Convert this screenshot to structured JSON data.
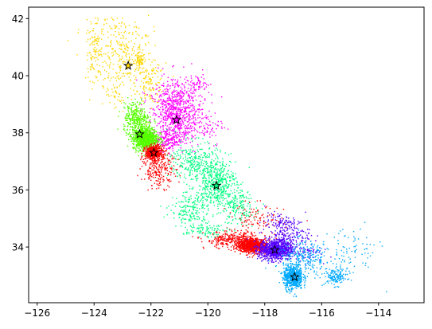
{
  "chart_data": {
    "type": "scatter",
    "title": "",
    "xlabel": "",
    "ylabel": "",
    "xlim": [
      -126.3,
      -112.4
    ],
    "ylim": [
      32.05,
      42.4
    ],
    "x_ticks": [
      -126,
      -124,
      -122,
      -120,
      -118,
      -116,
      -114
    ],
    "y_ticks": [
      34,
      36,
      38,
      40,
      42
    ],
    "x_tick_labels": [
      "−126",
      "−124",
      "−122",
      "−120",
      "−118",
      "−116",
      "−114"
    ],
    "y_tick_labels": [
      "34",
      "36",
      "38",
      "40",
      "42"
    ],
    "grid": false,
    "legend": "none",
    "clusters": [
      {
        "color": "#ffd700",
        "centroid": [
          -122.8,
          40.35
        ],
        "regions": [
          {
            "cx": -123.0,
            "cy": 40.6,
            "sx": 0.55,
            "sy": 0.55,
            "n": 260
          },
          {
            "cx": -124.0,
            "cy": 40.85,
            "sx": 0.15,
            "sy": 0.5,
            "n": 90
          },
          {
            "cx": -122.4,
            "cy": 40.5,
            "sx": 0.1,
            "sy": 0.15,
            "n": 70
          },
          {
            "cx": -122.0,
            "cy": 39.7,
            "sx": 0.25,
            "sy": 0.35,
            "n": 120
          },
          {
            "cx": -123.3,
            "cy": 41.6,
            "sx": 0.6,
            "sy": 0.25,
            "n": 60
          },
          {
            "cx": -123.2,
            "cy": 39.3,
            "sx": 0.3,
            "sy": 0.3,
            "n": 40
          }
        ]
      },
      {
        "color": "#ff00ff",
        "centroid": [
          -121.1,
          38.45
        ],
        "regions": [
          {
            "cx": -121.15,
            "cy": 38.65,
            "sx": 0.4,
            "sy": 0.45,
            "n": 600
          },
          {
            "cx": -121.0,
            "cy": 39.4,
            "sx": 0.5,
            "sy": 0.35,
            "n": 180
          },
          {
            "cx": -121.4,
            "cy": 37.75,
            "sx": 0.3,
            "sy": 0.2,
            "n": 200
          },
          {
            "cx": -120.3,
            "cy": 38.3,
            "sx": 0.45,
            "sy": 0.4,
            "n": 120
          },
          {
            "cx": -120.3,
            "cy": 39.7,
            "sx": 0.15,
            "sy": 0.15,
            "n": 40
          }
        ]
      },
      {
        "color": "#55ff00",
        "centroid": [
          -122.4,
          37.95
        ],
        "regions": [
          {
            "cx": -122.2,
            "cy": 37.8,
            "sx": 0.22,
            "sy": 0.2,
            "n": 900
          },
          {
            "cx": -122.45,
            "cy": 38.35,
            "sx": 0.25,
            "sy": 0.25,
            "n": 250
          },
          {
            "cx": -122.6,
            "cy": 38.8,
            "sx": 0.2,
            "sy": 0.2,
            "n": 80
          }
        ]
      },
      {
        "color": "#ff0000",
        "centroid": [
          -121.9,
          37.3
        ],
        "regions": [
          {
            "cx": -121.9,
            "cy": 37.3,
            "sx": 0.15,
            "sy": 0.12,
            "n": 500
          },
          {
            "cx": -121.7,
            "cy": 36.7,
            "sx": 0.3,
            "sy": 0.3,
            "n": 220
          },
          {
            "cx": -118.45,
            "cy": 34.05,
            "sx": 0.25,
            "sy": 0.12,
            "n": 900
          },
          {
            "cx": -119.2,
            "cy": 34.25,
            "sx": 0.45,
            "sy": 0.15,
            "n": 260
          },
          {
            "cx": -118.3,
            "cy": 34.9,
            "sx": 0.5,
            "sy": 0.3,
            "n": 120
          }
        ]
      },
      {
        "color": "#00ff80",
        "centroid": [
          -119.7,
          36.15
        ],
        "regions": [
          {
            "cx": -119.7,
            "cy": 36.3,
            "sx": 0.35,
            "sy": 0.4,
            "n": 480
          },
          {
            "cx": -120.5,
            "cy": 37.0,
            "sx": 0.4,
            "sy": 0.35,
            "n": 260
          },
          {
            "cx": -120.6,
            "cy": 35.3,
            "sx": 0.35,
            "sy": 0.35,
            "n": 200
          },
          {
            "cx": -119.0,
            "cy": 35.4,
            "sx": 0.35,
            "sy": 0.3,
            "n": 180
          },
          {
            "cx": -120.1,
            "cy": 34.6,
            "sx": 0.35,
            "sy": 0.12,
            "n": 80
          }
        ]
      },
      {
        "color": "#5500ff",
        "centroid": [
          -117.65,
          33.9
        ],
        "regions": [
          {
            "cx": -117.6,
            "cy": 33.9,
            "sx": 0.3,
            "sy": 0.18,
            "n": 900
          },
          {
            "cx": -117.2,
            "cy": 34.4,
            "sx": 0.4,
            "sy": 0.3,
            "n": 220
          },
          {
            "cx": -117.5,
            "cy": 34.9,
            "sx": 0.25,
            "sy": 0.15,
            "n": 60
          },
          {
            "cx": -116.5,
            "cy": 33.8,
            "sx": 0.25,
            "sy": 0.15,
            "n": 50
          }
        ]
      },
      {
        "color": "#00aaff",
        "centroid": [
          -116.95,
          32.95
        ],
        "regions": [
          {
            "cx": -117.0,
            "cy": 32.95,
            "sx": 0.17,
            "sy": 0.22,
            "n": 600
          },
          {
            "cx": -116.6,
            "cy": 33.6,
            "sx": 0.5,
            "sy": 0.3,
            "n": 260
          },
          {
            "cx": -115.5,
            "cy": 32.95,
            "sx": 0.2,
            "sy": 0.15,
            "n": 140
          },
          {
            "cx": -115.0,
            "cy": 33.8,
            "sx": 0.5,
            "sy": 0.45,
            "n": 80
          }
        ]
      }
    ]
  }
}
